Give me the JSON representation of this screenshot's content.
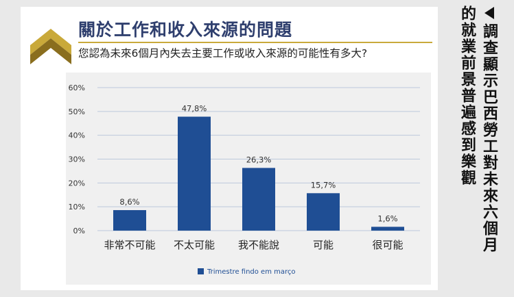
{
  "card": {
    "title": "關於工作和收入來源的問題",
    "subtitle": "您認為未來6個月內失去主要工作或收入來源的可能性有多大?"
  },
  "side_caption": {
    "line1": "調查顯示巴西勞工對未來六個月",
    "line2": "的就業前景普遍感到樂觀"
  },
  "colors": {
    "bar": "#1f4e94",
    "title": "#2f3f6e",
    "gold": "#c9a93a",
    "grid": "#bcc8dc"
  },
  "chart_data": {
    "type": "bar",
    "categories": [
      "非常不可能",
      "不太可能",
      "我不能說",
      "可能",
      "很可能"
    ],
    "series": [
      {
        "name": "Trimestre findo em março",
        "values": [
          8.6,
          47.8,
          26.3,
          15.7,
          1.6
        ]
      }
    ],
    "value_labels": [
      "8,6%",
      "47,8%",
      "26,3%",
      "15,7%",
      "1,6%"
    ],
    "yticks": [
      "0%",
      "10%",
      "20%",
      "30%",
      "40%",
      "50%",
      "60%"
    ],
    "ylim": [
      0,
      60
    ],
    "grid": true,
    "legend": "bottom-center"
  }
}
